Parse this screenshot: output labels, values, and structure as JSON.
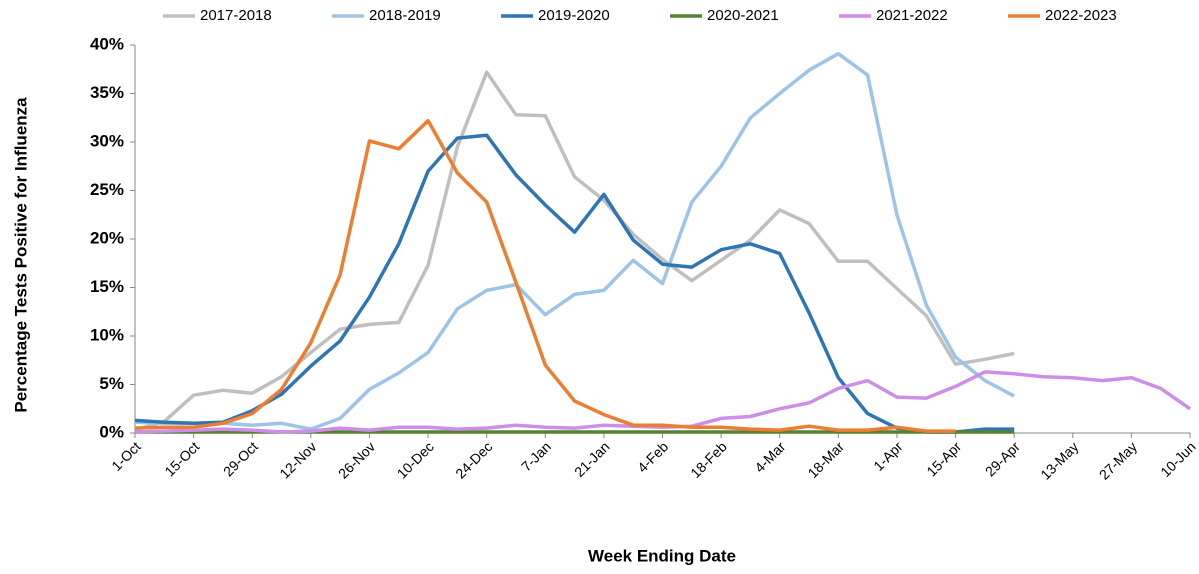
{
  "chart_data": {
    "type": "line",
    "x_label": "Week Ending Date",
    "y_label": "Percentage Tests Positive for Influenza",
    "categories": [
      "1-Oct",
      null,
      "15-Oct",
      null,
      "29-Oct",
      null,
      "12-Nov",
      null,
      "26-Nov",
      null,
      "10-Dec",
      null,
      "24-Dec",
      null,
      "7-Jan",
      null,
      "21-Jan",
      null,
      "4-Feb",
      null,
      "18-Feb",
      null,
      "4-Mar",
      null,
      "18-Mar",
      null,
      "1-Apr",
      null,
      "15-Apr",
      null,
      "29-Apr",
      null,
      "13-May",
      null,
      "27-May",
      null,
      "10-Jun"
    ],
    "ylim": [
      0,
      40
    ],
    "yticks": [
      {
        "value": 0,
        "label": "0%"
      },
      {
        "value": 5,
        "label": "5%"
      },
      {
        "value": 10,
        "label": "10%"
      },
      {
        "value": 15,
        "label": "15%"
      },
      {
        "value": 20,
        "label": "20%"
      },
      {
        "value": 25,
        "label": "25%"
      },
      {
        "value": 30,
        "label": "30%"
      },
      {
        "value": 35,
        "label": "35%"
      },
      {
        "value": 40,
        "label": "40%"
      }
    ],
    "grid": false,
    "legend": "top",
    "series": [
      {
        "name": "2017-2018",
        "color": "#bfbfbf",
        "values": [
          0.3,
          1.2,
          3.9,
          4.4,
          4.1,
          5.8,
          8.3,
          10.7,
          11.2,
          11.4,
          17.3,
          29.5,
          37.2,
          32.8,
          32.7,
          26.4,
          24.0,
          20.5,
          17.9,
          15.7,
          17.8,
          19.9,
          23.0,
          21.6,
          17.7,
          17.7,
          14.9,
          12.1,
          7.1,
          7.6,
          8.2,
          null,
          null,
          null,
          null,
          null,
          null
        ]
      },
      {
        "name": "2018-2019",
        "color": "#9dc3e6",
        "values": [
          1.1,
          1.0,
          1.0,
          1.0,
          0.8,
          1.0,
          0.4,
          1.5,
          4.5,
          6.2,
          8.3,
          12.8,
          14.7,
          15.3,
          12.2,
          14.3,
          14.7,
          17.8,
          15.4,
          23.8,
          27.5,
          32.5,
          35.0,
          37.4,
          39.1,
          36.9,
          22.5,
          13.2,
          7.8,
          5.4,
          3.8,
          null,
          null,
          null,
          null,
          null,
          null
        ]
      },
      {
        "name": "2019-2020",
        "color": "#2e75b6",
        "values": [
          1.3,
          1.1,
          1.0,
          1.1,
          2.3,
          4.0,
          6.9,
          9.5,
          14.0,
          19.5,
          27.0,
          30.4,
          30.7,
          26.6,
          23.5,
          20.7,
          24.6,
          19.9,
          17.4,
          17.1,
          18.9,
          19.5,
          18.5,
          12.4,
          5.7,
          2.0,
          0.5,
          0.1,
          0.1,
          0.4,
          0.4,
          null,
          null,
          null,
          null,
          null,
          null
        ]
      },
      {
        "name": "2020-2021",
        "color": "#548235",
        "values": [
          0.1,
          0.1,
          0.1,
          0.1,
          0.1,
          0.1,
          0.1,
          0.1,
          0.1,
          0.1,
          0.1,
          0.1,
          0.1,
          0.1,
          0.1,
          0.1,
          0.1,
          0.1,
          0.1,
          0.1,
          0.1,
          0.1,
          0.1,
          0.1,
          0.1,
          0.1,
          0.1,
          0.1,
          0.1,
          0.1,
          0.1,
          null,
          null,
          null,
          null,
          null,
          null
        ]
      },
      {
        "name": "2021-2022",
        "color": "#cc8ee8",
        "values": [
          0.1,
          0.2,
          0.3,
          0.4,
          0.3,
          0.1,
          0.2,
          0.5,
          0.3,
          0.6,
          0.6,
          0.4,
          0.5,
          0.8,
          0.6,
          0.5,
          0.8,
          0.7,
          0.6,
          0.7,
          1.5,
          1.7,
          2.5,
          3.1,
          4.6,
          5.4,
          3.7,
          3.6,
          4.8,
          6.3,
          6.1,
          5.8,
          5.7,
          5.4,
          5.7,
          4.6,
          2.5
        ]
      },
      {
        "name": "2022-2023",
        "color": "#ed7d31",
        "values": [
          0.5,
          0.6,
          0.6,
          1.0,
          2.0,
          4.5,
          9.3,
          16.3,
          30.1,
          29.3,
          32.2,
          26.8,
          23.8,
          15.5,
          7.0,
          3.3,
          1.9,
          0.8,
          0.8,
          0.6,
          0.6,
          0.4,
          0.3,
          0.7,
          0.3,
          0.3,
          0.6,
          0.2,
          0.2,
          null,
          null,
          null,
          null,
          null,
          null,
          null,
          null
        ]
      }
    ]
  }
}
